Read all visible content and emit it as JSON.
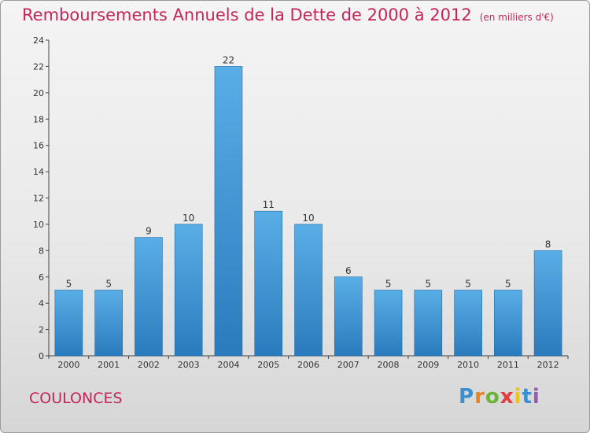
{
  "header": {
    "title": "Remboursements Annuels de la Dette de 2000 à 2012",
    "unit": "(en milliers d'€)"
  },
  "footer": {
    "commune": "COULONCES",
    "logo_letters": [
      "P",
      "r",
      "o",
      "x",
      "i",
      "t",
      "i"
    ]
  },
  "colors": {
    "title": "#c4255a",
    "bar_top": "#5aaee6",
    "bar_bottom": "#2a7bbd"
  },
  "chart_data": {
    "type": "bar",
    "title": "Remboursements Annuels de la Dette de 2000 à 2012",
    "categories": [
      "2000",
      "2001",
      "2002",
      "2003",
      "2004",
      "2005",
      "2006",
      "2007",
      "2008",
      "2009",
      "2010",
      "2011",
      "2012"
    ],
    "values": [
      5,
      5,
      9,
      10,
      22,
      11,
      10,
      6,
      5,
      5,
      5,
      5,
      8
    ],
    "ylim": [
      0,
      24
    ],
    "yticks": [
      0,
      2,
      4,
      6,
      8,
      10,
      12,
      14,
      16,
      18,
      20,
      22,
      24
    ],
    "grid": false,
    "legend": "none"
  }
}
